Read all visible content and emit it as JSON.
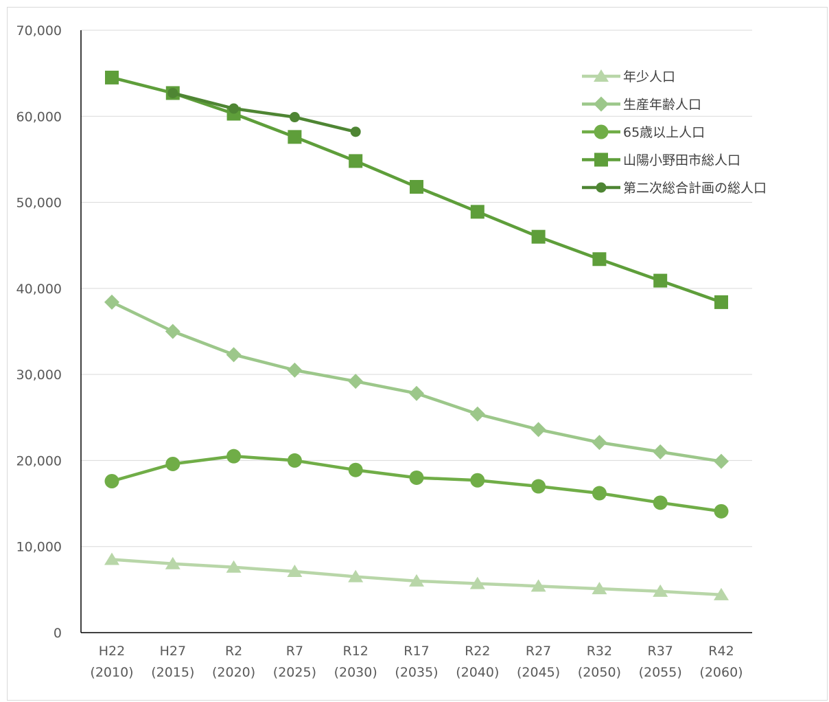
{
  "chart_data": {
    "type": "line",
    "title": "",
    "xlabel": "",
    "ylabel": "",
    "ylim": [
      0,
      70000
    ],
    "y_ticks": [
      0,
      10000,
      20000,
      30000,
      40000,
      50000,
      60000,
      70000
    ],
    "y_tick_labels": [
      "0",
      "10,000",
      "20,000",
      "30,000",
      "40,000",
      "50,000",
      "60,000",
      "70,000"
    ],
    "grid": true,
    "legend_position": "top-right",
    "categories": [
      {
        "era": "H22",
        "year": "(2010)"
      },
      {
        "era": "H27",
        "year": "(2015)"
      },
      {
        "era": "R2",
        "year": "(2020)"
      },
      {
        "era": "R7",
        "year": "(2025)"
      },
      {
        "era": "R12",
        "year": "(2030)"
      },
      {
        "era": "R17",
        "year": "(2035)"
      },
      {
        "era": "R22",
        "year": "(2040)"
      },
      {
        "era": "R27",
        "year": "(2045)"
      },
      {
        "era": "R32",
        "year": "(2050)"
      },
      {
        "era": "R37",
        "year": "(2055)"
      },
      {
        "era": "R42",
        "year": "(2060)"
      }
    ],
    "series": [
      {
        "name": "年少人口",
        "marker": "triangle",
        "color": "#b8d6a8",
        "values": [
          8500,
          8000,
          7600,
          7100,
          6500,
          6000,
          5700,
          5400,
          5100,
          4800,
          4400
        ]
      },
      {
        "name": "生産年齢人口",
        "marker": "diamond",
        "color": "#9cc78a",
        "values": [
          38400,
          35000,
          32300,
          30500,
          29200,
          27800,
          25400,
          23600,
          22100,
          21000,
          19900
        ]
      },
      {
        "name": "65歳以上人口",
        "marker": "circle",
        "color": "#70ad47",
        "values": [
          17600,
          19600,
          20500,
          20000,
          18900,
          18000,
          17700,
          17000,
          16200,
          15100,
          14100
        ]
      },
      {
        "name": "山陽小野田市総人口",
        "marker": "square",
        "color": "#5e9e3a",
        "values": [
          64500,
          62700,
          60300,
          57600,
          54800,
          51800,
          48900,
          46000,
          43400,
          40900,
          38400
        ]
      },
      {
        "name": "第二次総合計画の総人口",
        "marker": "smallcircle",
        "color": "#4e8533",
        "values": [
          null,
          62700,
          60900,
          59900,
          58200,
          null,
          null,
          null,
          null,
          null,
          null
        ]
      }
    ]
  }
}
